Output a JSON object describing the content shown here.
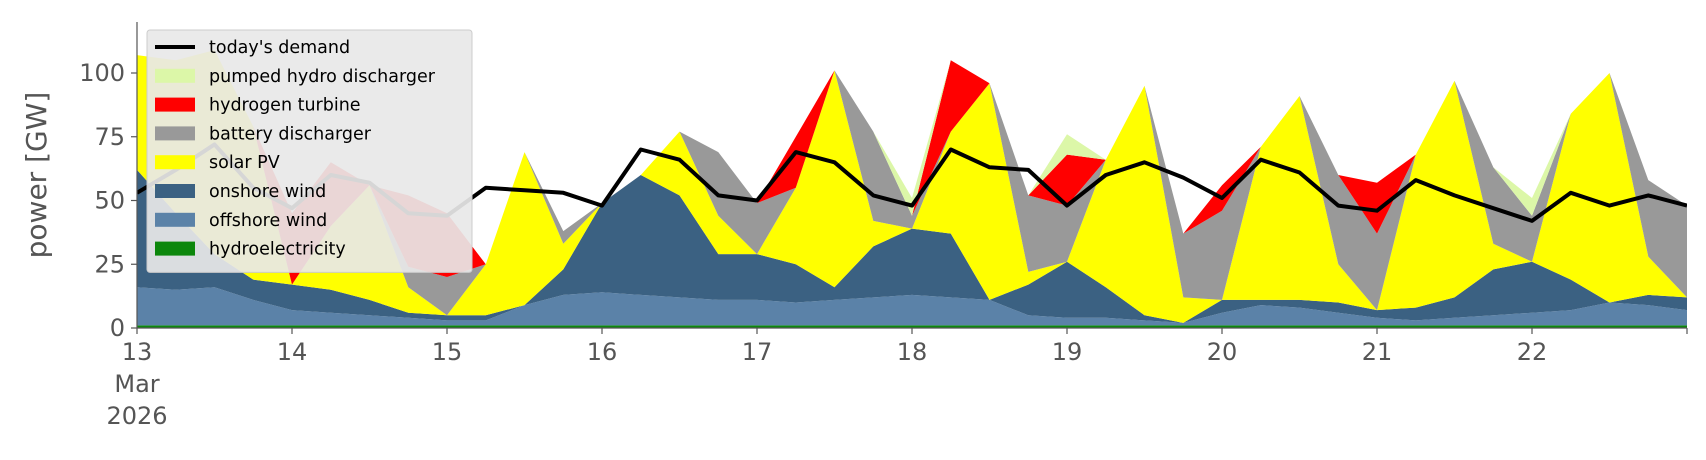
{
  "chart_data": {
    "type": "area",
    "title": "",
    "xlabel": "",
    "ylabel": "power [GW]",
    "ylim": [
      0,
      120
    ],
    "xlim": [
      "2026-03-13",
      "2026-03-23"
    ],
    "yticks": [
      0,
      25,
      50,
      75,
      100
    ],
    "ytick_labels": [
      "0",
      "25",
      "50",
      "75",
      "100"
    ],
    "xticks": [
      "2026-03-13",
      "2026-03-14",
      "2026-03-15",
      "2026-03-16",
      "2026-03-17",
      "2026-03-18",
      "2026-03-19",
      "2026-03-20",
      "2026-03-21",
      "2026-03-22"
    ],
    "xtick_labels": [
      "13",
      "14",
      "15",
      "16",
      "17",
      "18",
      "19",
      "20",
      "21",
      "22"
    ],
    "xtick_first_extra": [
      "Mar",
      "2026"
    ],
    "grid": false,
    "legend_position": "top-left",
    "legend": [
      {
        "label": "today's demand",
        "kind": "line",
        "color": "#000000"
      },
      {
        "label": "pumped hydro discharger",
        "kind": "patch",
        "color": "#dcf7a8"
      },
      {
        "label": "hydrogen turbine",
        "kind": "patch",
        "color": "#ff0000"
      },
      {
        "label": "battery discharger",
        "kind": "patch",
        "color": "#999999"
      },
      {
        "label": "solar PV",
        "kind": "patch",
        "color": "#ffff00"
      },
      {
        "label": "onshore wind",
        "kind": "patch",
        "color": "#3b6182"
      },
      {
        "label": "offshore wind",
        "kind": "patch",
        "color": "#5b82a8"
      },
      {
        "label": "hydroelectricity",
        "kind": "patch",
        "color": "#0c870c"
      }
    ],
    "x_days": [
      0,
      0.25,
      0.5,
      0.75,
      1,
      1.25,
      1.5,
      1.75,
      2,
      2.25,
      2.5,
      2.75,
      3,
      3.25,
      3.5,
      3.75,
      4,
      4.25,
      4.5,
      4.75,
      5,
      5.25,
      5.5,
      5.75,
      6,
      6.25,
      6.5,
      6.75,
      7,
      7.25,
      7.5,
      7.75,
      8,
      8.25,
      8.5,
      8.75,
      9,
      9.25,
      9.5,
      9.75,
      10
    ],
    "series": [
      {
        "name": "hydroelectricity",
        "color": "#0c870c",
        "values": [
          1.0,
          1.0,
          1.0,
          1.0,
          1.0,
          1.0,
          1.0,
          1.0,
          1.0,
          1.0,
          1.0,
          1.0,
          1.0,
          1.0,
          1.0,
          1.0,
          1.0,
          1.0,
          1.0,
          1.0,
          1.0,
          1.0,
          1.0,
          1.0,
          1.0,
          1.0,
          1.0,
          1.0,
          1.0,
          1.0,
          1.0,
          1.0,
          1.0,
          1.0,
          1.0,
          1.0,
          1.0,
          1.0,
          1.0,
          1.0,
          1.0
        ]
      },
      {
        "name": "offshore wind",
        "color": "#5b82a8",
        "values": [
          15,
          14,
          15,
          10,
          6,
          5,
          4,
          3,
          2,
          2,
          8,
          12,
          13,
          12,
          11,
          10,
          10,
          9,
          10,
          11,
          12,
          11,
          10,
          4,
          3,
          3,
          2,
          1,
          5,
          8,
          7,
          5,
          3,
          2,
          3,
          4,
          5,
          6,
          9,
          8,
          6
        ]
      },
      {
        "name": "onshore wind",
        "color": "#3b6182",
        "values": [
          46,
          30,
          13,
          8,
          10,
          9,
          6,
          2,
          2,
          2,
          0,
          10,
          35,
          47,
          40,
          18,
          18,
          15,
          5,
          20,
          26,
          25,
          0,
          12,
          22,
          12,
          2,
          0,
          5,
          2,
          3,
          4,
          3,
          5,
          8,
          18,
          20,
          12,
          0,
          4,
          5
        ]
      },
      {
        "name": "solar PV",
        "color": "#ffff00",
        "values": [
          45,
          60,
          80,
          60,
          0,
          25,
          45,
          10,
          0,
          20,
          60,
          10,
          0,
          0,
          25,
          15,
          0,
          30,
          85,
          10,
          0,
          40,
          85,
          5,
          0,
          50,
          90,
          10,
          0,
          60,
          80,
          15,
          0,
          60,
          85,
          10,
          0,
          65,
          90,
          15,
          0
        ]
      },
      {
        "name": "battery discharger",
        "color": "#999999",
        "values": [
          0,
          0,
          0,
          0,
          0,
          0,
          0,
          8,
          15,
          0,
          0,
          5,
          0,
          0,
          0,
          25,
          20,
          0,
          0,
          35,
          5,
          0,
          0,
          30,
          22,
          0,
          0,
          25,
          35,
          0,
          0,
          35,
          30,
          0,
          0,
          30,
          18,
          0,
          0,
          30,
          36
        ]
      },
      {
        "name": "hydrogen turbine",
        "color": "#ff0000",
        "values": [
          0,
          0,
          0,
          0,
          28,
          25,
          0,
          28,
          25,
          0,
          0,
          0,
          0,
          0,
          0,
          0,
          0,
          20,
          0,
          0,
          0,
          28,
          0,
          0,
          20,
          0,
          0,
          0,
          10,
          0,
          0,
          0,
          20,
          0,
          0,
          0,
          0,
          0,
          0,
          0,
          0
        ]
      },
      {
        "name": "pumped hydro discharger",
        "color": "#dcf7a8",
        "values": [
          0,
          0,
          0,
          0,
          0,
          0,
          0,
          0,
          0,
          0,
          0,
          0,
          0,
          0,
          0,
          0,
          0,
          0,
          0,
          0,
          7,
          0,
          0,
          0,
          8,
          0,
          0,
          0,
          0,
          0,
          0,
          0,
          0,
          0,
          0,
          0,
          7,
          0,
          0,
          0,
          0
        ]
      }
    ],
    "demand": {
      "name": "today's demand",
      "color": "#000000",
      "values": [
        53,
        62,
        72,
        55,
        47,
        60,
        57,
        45,
        44,
        55,
        54,
        53,
        48,
        70,
        66,
        52,
        50,
        69,
        65,
        52,
        48,
        70,
        63,
        62,
        48,
        60,
        65,
        59,
        51,
        66,
        61,
        48,
        46,
        58,
        52,
        47,
        42,
        53,
        48,
        52,
        48
      ]
    }
  }
}
